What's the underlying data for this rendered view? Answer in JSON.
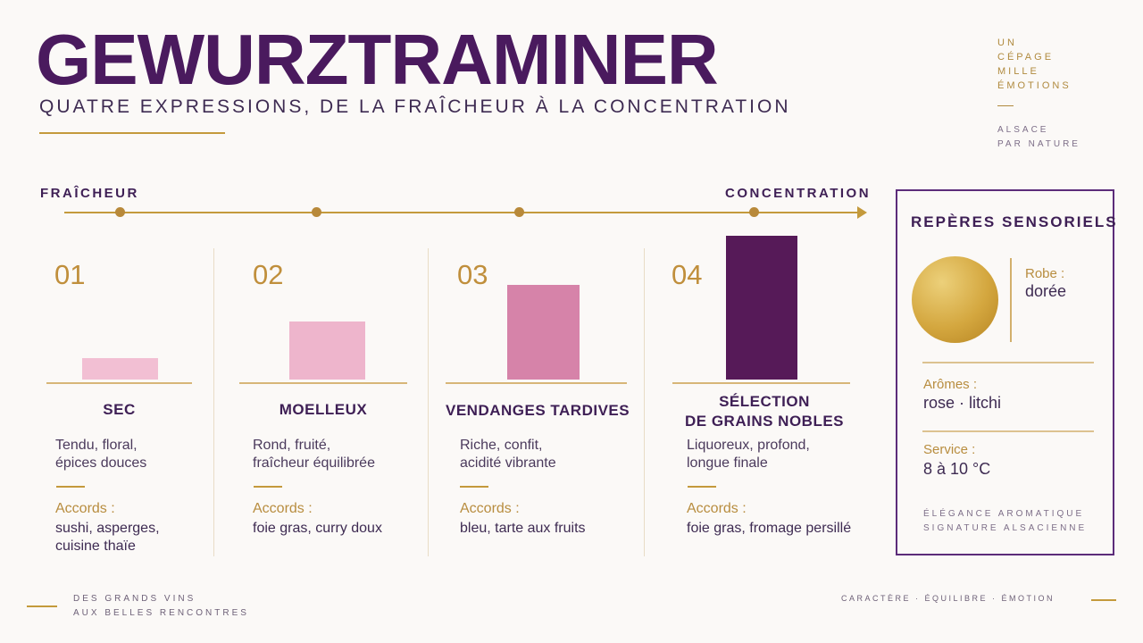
{
  "header": {
    "title": "GEWURZTRAMINER",
    "subtitle": "QUATRE EXPRESSIONS, DE LA FRAÎCHEUR À LA CONCENTRATION"
  },
  "tagline": [
    "UN",
    "CÉPAGE",
    "MILLE",
    "ÉMOTIONS"
  ],
  "region": [
    "ALSACE",
    "PAR NATURE"
  ],
  "axis": {
    "start_label": "FRAÎCHEUR",
    "end_label": "CONCENTRATION"
  },
  "styles": [
    {
      "number": "01",
      "name_lines": [
        "SEC"
      ],
      "intensity": 1,
      "color": "#f2bfd3",
      "description": [
        "Tendu, floral,",
        "épices douces"
      ],
      "pairing_label": "Accords :",
      "pairing": [
        "sushi, asperges,",
        "cuisine thaïe"
      ]
    },
    {
      "number": "02",
      "name_lines": [
        "MOELLEUX"
      ],
      "intensity": 2.7,
      "color": "#eeb5cc",
      "description": [
        "Rond, fruité,",
        "fraîcheur équilibrée"
      ],
      "pairing_label": "Accords :",
      "pairing": [
        "foie gras, curry doux"
      ]
    },
    {
      "number": "03",
      "name_lines": [
        "VENDANGES TARDIVES"
      ],
      "intensity": 4.4,
      "color": "#d683a9",
      "description": [
        "Riche, confit,",
        "acidité vibrante"
      ],
      "pairing_label": "Accords :",
      "pairing": [
        "bleu, tarte aux fruits"
      ]
    },
    {
      "number": "04",
      "name_lines": [
        "SÉLECTION",
        "DE GRAINS NOBLES"
      ],
      "intensity": 6.7,
      "color": "#561a58",
      "description": [
        "Liquoreux, profond,",
        "longue finale"
      ],
      "pairing_label": "Accords :",
      "pairing": [
        "foie gras, fromage persillé"
      ]
    }
  ],
  "sensory_panel": {
    "title": "REPÈRES SENSORIELS",
    "robe_label": "Robe :",
    "robe_value": "dorée",
    "aromas_label": "Arômes :",
    "aromas_value": "rose · litchi",
    "service_label": "Service :",
    "service_value": "8 à 10 °C",
    "footer": [
      "ÉLÉGANCE AROMATIQUE",
      "SIGNATURE ALSACIENNE"
    ]
  },
  "footer": {
    "left": [
      "DES GRANDS VINS",
      "AUX BELLES RENCONTRES"
    ],
    "right": "CARACTÈRE  ·  ÉQUILIBRE  ·  ÉMOTION"
  }
}
